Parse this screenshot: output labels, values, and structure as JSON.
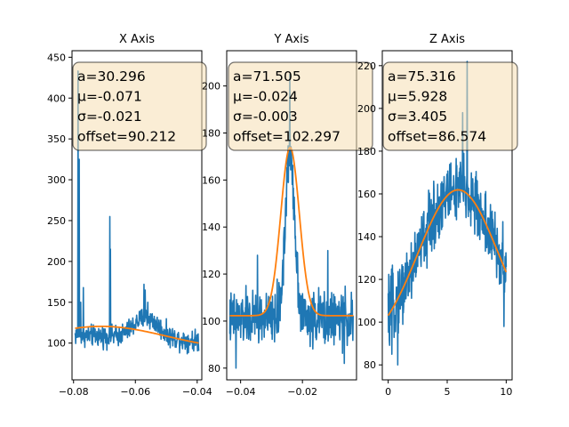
{
  "chart_data": [
    {
      "type": "line",
      "title": "X Axis",
      "xlim": [
        -0.0805,
        -0.0385
      ],
      "ylim": [
        55,
        458
      ],
      "xticks": [
        -0.08,
        -0.06,
        -0.04
      ],
      "xtick_labels": [
        "−0.08",
        "−0.06",
        "−0.04"
      ],
      "yticks": [
        100,
        150,
        200,
        250,
        300,
        350,
        400,
        450
      ],
      "ytick_labels": [
        "100",
        "150",
        "200",
        "250",
        "300",
        "350",
        "400",
        "450"
      ],
      "grid": false,
      "series": [
        {
          "kind": "noisy-data",
          "color": "#1f77b4",
          "x_range": [
            -0.0795,
            -0.0395
          ],
          "shape": {
            "type": "baseline",
            "level": 110,
            "slope_end_level": 103,
            "noise": 9
          },
          "spikes": [
            {
              "x": -0.0785,
              "y": 433
            },
            {
              "x": -0.0782,
              "y": 325
            },
            {
              "x": -0.0777,
              "y": 150
            },
            {
              "x": -0.0768,
              "y": 168
            },
            {
              "x": -0.0683,
              "y": 255
            },
            {
              "x": -0.0681,
              "y": 215
            },
            {
              "x": -0.0572,
              "y": 172
            },
            {
              "x": -0.0568,
              "y": 165
            },
            {
              "x": -0.056,
              "y": 150
            }
          ],
          "bumps": [
            {
              "x": -0.0565,
              "width": 0.004,
              "height": 25
            }
          ]
        },
        {
          "kind": "gaussian-fit",
          "color": "#ff7f0e",
          "params": {
            "a": 30.296,
            "mu": -0.071,
            "sigma": -0.021,
            "offset": 90.212
          },
          "x_range": [
            -0.0795,
            -0.0395
          ]
        }
      ],
      "annotation_lines": [
        "a=30.296",
        "μ=-0.071",
        "σ=-0.021",
        "offset=90.212"
      ]
    },
    {
      "type": "line",
      "title": "Y Axis",
      "xlim": [
        -0.0445,
        -0.0025
      ],
      "ylim": [
        75,
        215
      ],
      "xticks": [
        -0.04,
        -0.02
      ],
      "xtick_labels": [
        "−0.04",
        "−0.02"
      ],
      "yticks": [
        80,
        100,
        120,
        140,
        160,
        180,
        200
      ],
      "ytick_labels": [
        "80",
        "100",
        "120",
        "140",
        "160",
        "180",
        "200"
      ],
      "grid": false,
      "series": [
        {
          "kind": "noisy-data",
          "color": "#1f77b4",
          "x_range": [
            -0.0435,
            -0.0035
          ],
          "shape": {
            "type": "gaussian",
            "a": 71.505,
            "mu": -0.024,
            "sigma": 0.0015,
            "offset": 101,
            "noise": 8
          },
          "spikes": [
            {
              "x": -0.0241,
              "y": 205
            },
            {
              "x": -0.0415,
              "y": 80
            },
            {
              "x": -0.0345,
              "y": 128
            },
            {
              "x": -0.0118,
              "y": 130
            },
            {
              "x": -0.0065,
              "y": 82
            }
          ],
          "bumps": []
        },
        {
          "kind": "gaussian-fit",
          "color": "#ff7f0e",
          "params": {
            "a": 71.505,
            "mu": -0.024,
            "sigma": -0.003,
            "offset": 102.297
          },
          "x_range": [
            -0.0435,
            -0.0035
          ]
        }
      ],
      "annotation_lines": [
        "a=71.505",
        "μ=-0.024",
        "σ=-0.003",
        "offset=102.297"
      ]
    },
    {
      "type": "line",
      "title": "Z Axis",
      "xlim": [
        -0.5,
        10.5
      ],
      "ylim": [
        73,
        227
      ],
      "xticks": [
        0,
        5,
        10
      ],
      "xtick_labels": [
        "0",
        "5",
        "10"
      ],
      "yticks": [
        80,
        100,
        120,
        140,
        160,
        180,
        200,
        220
      ],
      "ytick_labels": [
        "80",
        "100",
        "120",
        "140",
        "160",
        "180",
        "200",
        "220"
      ],
      "grid": false,
      "series": [
        {
          "kind": "noisy-data",
          "color": "#1f77b4",
          "x_range": [
            0,
            10
          ],
          "shape": {
            "type": "gaussian",
            "a": 75.316,
            "mu": 5.928,
            "sigma": 3.405,
            "offset": 86.574,
            "noise": 11
          },
          "spikes": [
            {
              "x": 6.7,
              "y": 222
            },
            {
              "x": 6.3,
              "y": 198
            },
            {
              "x": 0.8,
              "y": 80
            },
            {
              "x": 0.3,
              "y": 85
            },
            {
              "x": 9.8,
              "y": 98
            }
          ],
          "bumps": []
        },
        {
          "kind": "gaussian-fit",
          "color": "#ff7f0e",
          "params": {
            "a": 75.316,
            "mu": 5.928,
            "sigma": 3.405,
            "offset": 86.574
          },
          "x_range": [
            0,
            10
          ]
        }
      ],
      "annotation_lines": [
        "a=75.316",
        "μ=5.928",
        "σ=3.405",
        "offset=86.574"
      ]
    }
  ]
}
